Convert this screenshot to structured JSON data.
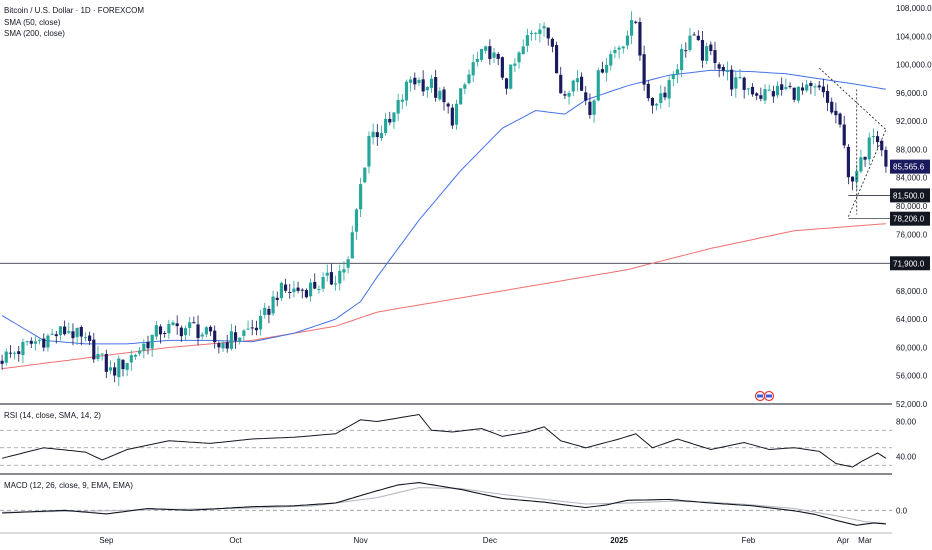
{
  "header": {
    "title": "Bitcoin / U.S. Dollar · 1D · FOREXCOM",
    "sma50": "SMA (50, close)",
    "sma200": "SMA (200, close)",
    "rsi": "RSI (14, close, SMA, 14, 2)",
    "macd": "MACD (12, 26, close, 9, EMA, EMA)"
  },
  "colors": {
    "up": "#26a69a",
    "down": "#1a1a5e",
    "sma50": "#4472e8",
    "sma200": "#f07070",
    "price_tag": "#1a1a5e",
    "level_tag": "#131722"
  },
  "chart_data": [
    {
      "type": "candlestick",
      "title": "Bitcoin / U.S. Dollar · 1D · FOREXCOM",
      "ylim": [
        52000,
        108000
      ],
      "y_ticks": [
        "108,000.0",
        "104,000.0",
        "100,000.0",
        "96,000.0",
        "92,000.0",
        "88,000.0",
        "84,000.0",
        "80,000.0",
        "76,000.0",
        "72,000.0",
        "68,000.0",
        "64,000.0",
        "60,000.0",
        "56,000.0",
        "52,000.0"
      ],
      "x_labels": [
        "Sep",
        "Oct",
        "Nov",
        "Dec",
        "2025",
        "Feb",
        "Mar",
        "Apr"
      ],
      "close_path": [
        [
          0,
          58500
        ],
        [
          8,
          60800
        ],
        [
          16,
          62500
        ],
        [
          22,
          59500
        ],
        [
          26,
          56500
        ],
        [
          30,
          58200
        ],
        [
          38,
          62500
        ],
        [
          46,
          62800
        ],
        [
          52,
          60400
        ],
        [
          56,
          61500
        ],
        [
          62,
          63300
        ],
        [
          66,
          67800
        ],
        [
          72,
          68200
        ],
        [
          79,
          69500
        ],
        [
          83,
          72000
        ],
        [
          88,
          90000
        ],
        [
          93,
          91500
        ],
        [
          98,
          98000
        ],
        [
          103,
          97000
        ],
        [
          108,
          92500
        ],
        [
          113,
          100000
        ],
        [
          117,
          102000
        ],
        [
          121,
          97500
        ],
        [
          126,
          103500
        ],
        [
          130,
          106500
        ],
        [
          134,
          96500
        ],
        [
          138,
          98000
        ],
        [
          141,
          94000
        ],
        [
          144,
          100000
        ],
        [
          148,
          102800
        ],
        [
          152,
          106000
        ],
        [
          155,
          94000
        ],
        [
          159,
          96500
        ],
        [
          165,
          104000
        ],
        [
          168,
          101500
        ],
        [
          171,
          101200
        ],
        [
          175,
          97500
        ],
        [
          180,
          96500
        ],
        [
          182,
          95800
        ],
        [
          188,
          96500
        ],
        [
          192,
          96000
        ],
        [
          196,
          96200
        ],
        [
          199,
          93500
        ],
        [
          201,
          91500
        ],
        [
          203,
          83500
        ],
        [
          205,
          85500
        ],
        [
          207,
          86200
        ],
        [
          209,
          91000
        ],
        [
          211,
          89000
        ],
        [
          212,
          85565.6
        ]
      ],
      "sma50": [
        [
          0,
          64500
        ],
        [
          10,
          61000
        ],
        [
          20,
          60500
        ],
        [
          30,
          60500
        ],
        [
          40,
          61000
        ],
        [
          50,
          61000
        ],
        [
          60,
          60800
        ],
        [
          70,
          62000
        ],
        [
          80,
          64000
        ],
        [
          86,
          66500
        ],
        [
          90,
          70000
        ],
        [
          100,
          78000
        ],
        [
          110,
          85000
        ],
        [
          120,
          91000
        ],
        [
          128,
          93500
        ],
        [
          135,
          93000
        ],
        [
          140,
          95000
        ],
        [
          150,
          97000
        ],
        [
          160,
          98500
        ],
        [
          170,
          99200
        ],
        [
          180,
          99000
        ],
        [
          188,
          98700
        ],
        [
          196,
          98000
        ],
        [
          205,
          97200
        ],
        [
          212,
          96500
        ]
      ],
      "sma200": [
        [
          0,
          57000
        ],
        [
          20,
          58500
        ],
        [
          40,
          60000
        ],
        [
          60,
          61000
        ],
        [
          80,
          63000
        ],
        [
          90,
          65000
        ],
        [
          110,
          67000
        ],
        [
          130,
          69000
        ],
        [
          150,
          71000
        ],
        [
          170,
          74000
        ],
        [
          190,
          76500
        ],
        [
          212,
          77500
        ]
      ],
      "price_labels": [
        "85,565.6",
        "81,500.0",
        "78,206.0",
        "71,900.0"
      ],
      "levels": [
        81500,
        78206,
        71900
      ],
      "last": 85565.6
    },
    {
      "type": "line",
      "title": "RSI (14, close, SMA, 14, 2)",
      "ylim": [
        20,
        100
      ],
      "y_ticks": [
        "80.00",
        "40.00"
      ],
      "bands": [
        70,
        50,
        30
      ],
      "values": [
        [
          0,
          38
        ],
        [
          10,
          50
        ],
        [
          20,
          45
        ],
        [
          24,
          36
        ],
        [
          30,
          48
        ],
        [
          40,
          58
        ],
        [
          50,
          55
        ],
        [
          60,
          60
        ],
        [
          70,
          62
        ],
        [
          80,
          66
        ],
        [
          86,
          82
        ],
        [
          90,
          80
        ],
        [
          100,
          88
        ],
        [
          103,
          70
        ],
        [
          108,
          68
        ],
        [
          115,
          72
        ],
        [
          120,
          63
        ],
        [
          126,
          68
        ],
        [
          130,
          74
        ],
        [
          134,
          58
        ],
        [
          140,
          50
        ],
        [
          148,
          60
        ],
        [
          152,
          66
        ],
        [
          156,
          50
        ],
        [
          162,
          60
        ],
        [
          170,
          48
        ],
        [
          178,
          56
        ],
        [
          184,
          48
        ],
        [
          190,
          50
        ],
        [
          196,
          46
        ],
        [
          200,
          32
        ],
        [
          204,
          28
        ],
        [
          206,
          34
        ],
        [
          210,
          44
        ],
        [
          212,
          38
        ]
      ]
    },
    {
      "type": "line",
      "title": "MACD (12, 26, close, 9, EMA, EMA)",
      "ylim": [
        -5000,
        8000
      ],
      "y_ticks": [
        "0.0"
      ],
      "series": [
        {
          "values": [
            [
              0,
              -600
            ],
            [
              15,
              0
            ],
            [
              25,
              -800
            ],
            [
              35,
              400
            ],
            [
              45,
              0
            ],
            [
              60,
              800
            ],
            [
              70,
              1000
            ],
            [
              80,
              1600
            ],
            [
              88,
              3800
            ],
            [
              95,
              5600
            ],
            [
              100,
              6100
            ],
            [
              110,
              4600
            ],
            [
              120,
              2600
            ],
            [
              130,
              1800
            ],
            [
              140,
              600
            ],
            [
              145,
              1200
            ],
            [
              150,
              2200
            ],
            [
              160,
              2400
            ],
            [
              170,
              1600
            ],
            [
              180,
              1000
            ],
            [
              190,
              -100
            ],
            [
              195,
              -900
            ],
            [
              200,
              -2200
            ],
            [
              205,
              -3300
            ],
            [
              209,
              -2800
            ],
            [
              212,
              -3000
            ]
          ]
        },
        {
          "values": [
            [
              0,
              -400
            ],
            [
              20,
              -200
            ],
            [
              40,
              200
            ],
            [
              60,
              500
            ],
            [
              75,
              1000
            ],
            [
              90,
              2800
            ],
            [
              100,
              5000
            ],
            [
              110,
              4800
            ],
            [
              120,
              3500
            ],
            [
              130,
              2400
            ],
            [
              140,
              1400
            ],
            [
              150,
              1600
            ],
            [
              160,
              2000
            ],
            [
              170,
              1800
            ],
            [
              180,
              1200
            ],
            [
              190,
              400
            ],
            [
              200,
              -1200
            ],
            [
              207,
              -2500
            ],
            [
              212,
              -2900
            ]
          ]
        }
      ]
    }
  ]
}
